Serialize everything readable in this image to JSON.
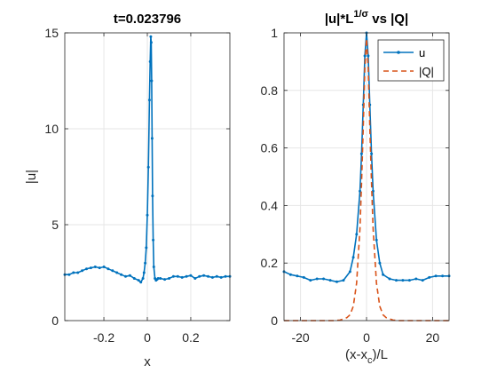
{
  "colors": {
    "u": "#0072BD",
    "Q": "#D95319",
    "axis": "#262626",
    "grid": "#e6e6e6"
  },
  "chart_data": [
    {
      "type": "line",
      "title": "t=0.023796",
      "xlabel": "x",
      "ylabel": "|u|",
      "xlim": [
        -0.38,
        0.38
      ],
      "ylim": [
        0,
        15
      ],
      "xticks": [
        -0.2,
        0,
        0.2
      ],
      "xtick_labels": [
        "-0.2",
        "0",
        "0.2"
      ],
      "yticks": [
        0,
        5,
        10,
        15
      ],
      "ytick_labels": [
        "0",
        "5",
        "10",
        "15"
      ],
      "grid": true,
      "series": [
        {
          "x": [
            -0.38,
            -0.36,
            -0.34,
            -0.32,
            -0.3,
            -0.28,
            -0.26,
            -0.24,
            -0.22,
            -0.2,
            -0.18,
            -0.16,
            -0.14,
            -0.12,
            -0.1,
            -0.08,
            -0.06,
            -0.04,
            -0.03,
            -0.02,
            -0.015,
            -0.01,
            -0.005,
            0.0,
            0.005,
            0.01,
            0.013,
            0.016,
            0.018,
            0.02,
            0.022,
            0.024,
            0.027,
            0.03,
            0.035,
            0.04,
            0.045,
            0.05,
            0.06,
            0.08,
            0.1,
            0.12,
            0.14,
            0.16,
            0.18,
            0.2,
            0.22,
            0.24,
            0.26,
            0.28,
            0.3,
            0.32,
            0.34,
            0.36,
            0.38
          ],
          "values": [
            2.4,
            2.4,
            2.5,
            2.5,
            2.6,
            2.7,
            2.75,
            2.8,
            2.75,
            2.8,
            2.7,
            2.6,
            2.5,
            2.4,
            2.3,
            2.35,
            2.2,
            2.1,
            2.0,
            2.2,
            2.5,
            3.0,
            3.8,
            5.5,
            8.0,
            11.5,
            13.5,
            14.8,
            14.5,
            12.5,
            9.5,
            6.5,
            4.2,
            2.8,
            2.2,
            2.1,
            2.15,
            2.2,
            2.2,
            2.15,
            2.2,
            2.3,
            2.3,
            2.25,
            2.3,
            2.35,
            2.2,
            2.3,
            2.35,
            2.3,
            2.25,
            2.3,
            2.25,
            2.3,
            2.3
          ]
        }
      ]
    },
    {
      "type": "line",
      "title": "|u|*L",
      "title_sup": "1/σ",
      "title_tail": " vs |Q|",
      "xlabel": "(x-x",
      "xlabel_sub": "c",
      "xlabel_tail": ")/L",
      "xlim": [
        -25,
        25
      ],
      "ylim": [
        0,
        1
      ],
      "xticks": [
        -20,
        0,
        20
      ],
      "xtick_labels": [
        "-20",
        "0",
        "20"
      ],
      "yticks": [
        0,
        0.2,
        0.4,
        0.6,
        0.8,
        1
      ],
      "ytick_labels": [
        "0",
        "0.2",
        "0.4",
        "0.6",
        "0.8",
        "1"
      ],
      "grid": true,
      "legend": {
        "placement": "top-right",
        "entries": [
          "u",
          "|Q|"
        ]
      },
      "series": [
        {
          "name": "u",
          "x": [
            -25,
            -23,
            -21,
            -19,
            -17,
            -15,
            -13,
            -11,
            -9,
            -7,
            -5,
            -4,
            -3,
            -2,
            -1.5,
            -1,
            -0.5,
            0,
            0.5,
            1,
            1.5,
            2,
            3,
            4,
            5,
            7,
            9,
            11,
            13,
            15,
            17,
            19,
            21,
            23,
            25
          ],
          "values": [
            0.17,
            0.16,
            0.155,
            0.15,
            0.14,
            0.145,
            0.145,
            0.14,
            0.135,
            0.14,
            0.17,
            0.22,
            0.3,
            0.45,
            0.58,
            0.75,
            0.92,
            1.0,
            0.92,
            0.75,
            0.58,
            0.45,
            0.28,
            0.2,
            0.16,
            0.145,
            0.14,
            0.14,
            0.14,
            0.145,
            0.14,
            0.15,
            0.155,
            0.155,
            0.155
          ]
        },
        {
          "name": "|Q|",
          "x": [
            -25,
            -15,
            -10,
            -8,
            -6,
            -5,
            -4,
            -3,
            -2,
            -1.5,
            -1,
            -0.5,
            0,
            0.5,
            1,
            1.5,
            2,
            3,
            4,
            5,
            6,
            8,
            10,
            15,
            25
          ],
          "values": [
            0,
            0,
            0.0,
            0.002,
            0.01,
            0.02,
            0.05,
            0.13,
            0.32,
            0.48,
            0.67,
            0.88,
            0.98,
            0.88,
            0.67,
            0.48,
            0.32,
            0.13,
            0.05,
            0.02,
            0.01,
            0.002,
            0.0,
            0,
            0
          ]
        }
      ]
    }
  ]
}
